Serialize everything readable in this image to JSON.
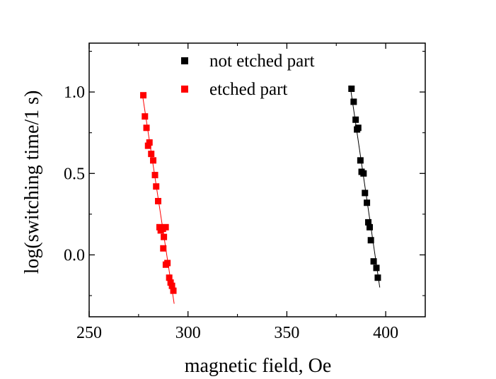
{
  "chart_data": {
    "type": "scatter",
    "title": "",
    "xlabel": "magnetic field, Oe",
    "ylabel": "log(switching time/1 s)",
    "xlim": [
      250,
      420
    ],
    "ylim": [
      -0.38,
      1.3
    ],
    "x_ticks": [
      250,
      300,
      350,
      400
    ],
    "x_tick_labels": [
      "250",
      "300",
      "350",
      "400"
    ],
    "y_ticks": [
      0.0,
      0.5,
      1.0
    ],
    "y_tick_labels": [
      "0.0",
      "0.5",
      "1.0"
    ],
    "grid": false,
    "legend_position": "top-center",
    "series": [
      {
        "name": "not etched part",
        "color": "#000000",
        "marker": "square",
        "points": [
          [
            382.7,
            1.02
          ],
          [
            383.8,
            0.94
          ],
          [
            384.8,
            0.83
          ],
          [
            385.5,
            0.77
          ],
          [
            386.1,
            0.78
          ],
          [
            387.2,
            0.58
          ],
          [
            387.8,
            0.51
          ],
          [
            388.8,
            0.5
          ],
          [
            389.5,
            0.38
          ],
          [
            390.5,
            0.32
          ],
          [
            391.2,
            0.2
          ],
          [
            391.9,
            0.17
          ],
          [
            392.5,
            0.09
          ],
          [
            393.9,
            -0.04
          ],
          [
            395.3,
            -0.08
          ],
          [
            396.0,
            -0.14
          ]
        ],
        "fit": [
          [
            382.0,
            1.04
          ],
          [
            397.0,
            -0.2
          ]
        ]
      },
      {
        "name": "etched part",
        "color": "#ff0000",
        "marker": "square",
        "points": [
          [
            277.4,
            0.98
          ],
          [
            278.2,
            0.85
          ],
          [
            279.0,
            0.78
          ],
          [
            279.8,
            0.67
          ],
          [
            280.5,
            0.69
          ],
          [
            281.4,
            0.62
          ],
          [
            282.4,
            0.58
          ],
          [
            283.3,
            0.49
          ],
          [
            283.9,
            0.42
          ],
          [
            284.9,
            0.33
          ],
          [
            285.6,
            0.17
          ],
          [
            286.2,
            0.15
          ],
          [
            287.3,
            0.16
          ],
          [
            287.8,
            0.11
          ],
          [
            288.7,
            0.17
          ],
          [
            287.5,
            0.04
          ],
          [
            288.8,
            -0.06
          ],
          [
            289.6,
            -0.05
          ],
          [
            290.5,
            -0.14
          ],
          [
            291.2,
            -0.17
          ],
          [
            291.9,
            -0.19
          ],
          [
            292.6,
            -0.22
          ]
        ],
        "fit": [
          [
            277.0,
            0.98
          ],
          [
            293.0,
            -0.3
          ]
        ]
      }
    ]
  }
}
